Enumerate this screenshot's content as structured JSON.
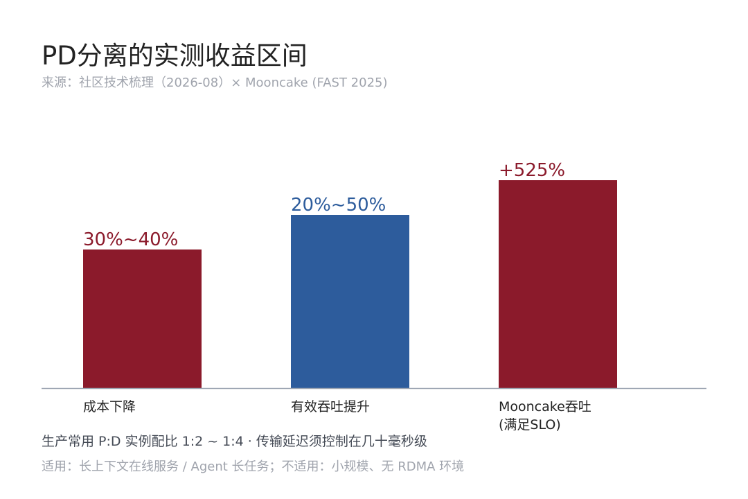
{
  "title": "PD分离的实测收益区间",
  "subtitle": "来源：社区技术梳理（2026-08）× Mooncake (FAST 2025)",
  "note": "生产常用 P:D 实例配比 1:2 ~ 1:4 · 传输延迟须控制在几十毫秒级",
  "footnote": "适用：长上下文在线服务 / Agent 长任务；不适用：小规模、无 RDMA 环境",
  "colors": {
    "red": "#8b1a2b",
    "blue": "#2d5c9c",
    "axis": "#9aa3b0",
    "category_text": "#222222"
  },
  "chart_data": {
    "type": "bar",
    "categories": [
      "成本下降",
      "有效吞吐提升",
      "Mooncake吞吐\n(满足SLO)"
    ],
    "values": [
      40,
      50,
      60
    ],
    "value_labels": [
      "30%~40%",
      "20%~50%",
      "+525%"
    ],
    "bar_colors": [
      "#8b1a2b",
      "#2d5c9c",
      "#8b1a2b"
    ],
    "title": "PD分离的实测收益区间",
    "xlabel": "",
    "ylabel": "",
    "ylim": [
      0,
      60
    ],
    "grid": false,
    "legend": "none"
  }
}
